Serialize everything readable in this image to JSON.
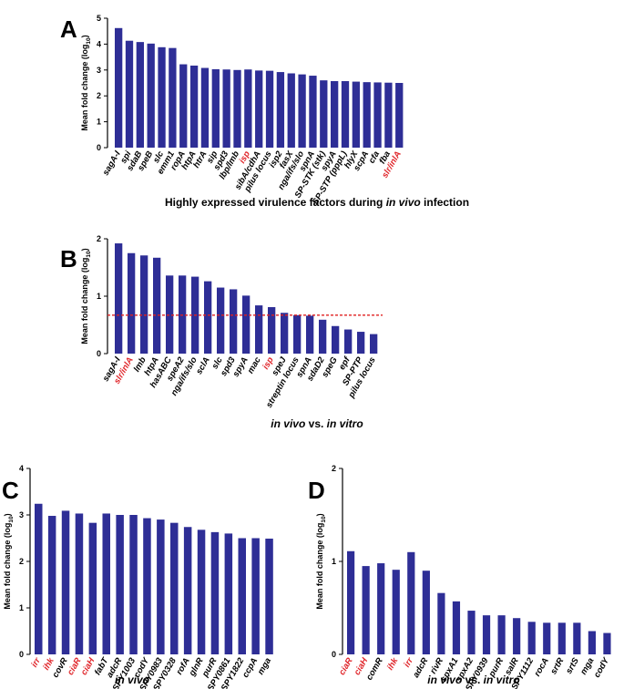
{
  "colors": {
    "bar": "#2e2e96",
    "highlight": "#e0262b",
    "normal": "#000000",
    "threshold": "#e02020"
  },
  "chart_data": [
    {
      "id": "A",
      "type": "bar",
      "panel_label": "A",
      "ylabel_main": "Mean fold change (log",
      "ylabel_sub": "10",
      "ylabel_end": ")",
      "ylim": [
        0,
        5
      ],
      "yticks": [
        0,
        1,
        2,
        3,
        4,
        5
      ],
      "categories": [
        "sagA-I",
        "spi",
        "sdaB",
        "speB",
        "slc",
        "emm1",
        "ropA",
        "htpA",
        "htrA",
        "sip",
        "spd3",
        "lbp/lmb",
        "isp",
        "sibA/cdhA",
        "pilus locus",
        "isp2",
        "fasX",
        "nga/ifs/slo",
        "spnA",
        "SP-STK (stk)",
        "spyA",
        "SP-STP (pppL)",
        "hlyX",
        "scpA",
        "cfa",
        "fba",
        "slr/inlA"
      ],
      "values": [
        4.62,
        4.13,
        4.08,
        4.02,
        3.88,
        3.85,
        3.22,
        3.17,
        3.08,
        3.03,
        3.02,
        3.0,
        3.02,
        2.98,
        2.97,
        2.92,
        2.87,
        2.83,
        2.78,
        2.6,
        2.57,
        2.57,
        2.55,
        2.53,
        2.52,
        2.51,
        2.5
      ],
      "highlighted": [
        "isp",
        "slr/inlA"
      ],
      "italic_categories": [
        "sagA-I",
        "spi",
        "sdaB",
        "speB",
        "slc",
        "emm1",
        "ropA",
        "htpA",
        "htrA",
        "sip",
        "spd3",
        "lbp/lmb",
        "isp",
        "sibA/cdhA",
        "isp2",
        "fasX",
        "nga/ifs/slo",
        "spnA",
        "spyA",
        "hlyX",
        "scpA",
        "cfa",
        "fba",
        "slr/inlA"
      ],
      "caption": [
        {
          "text": "Highly expressed virulence factors during ",
          "italic": false
        },
        {
          "text": "in vivo",
          "italic": true
        },
        {
          "text": " infection",
          "italic": false
        }
      ]
    },
    {
      "id": "B",
      "type": "bar",
      "panel_label": "B",
      "ylabel_main": "Mean fold change (log",
      "ylabel_sub": "10",
      "ylabel_end": ")",
      "ylim": [
        0,
        2
      ],
      "yticks": [
        0,
        1,
        2
      ],
      "threshold": 0.67,
      "categories": [
        "sagA-I",
        "slr/inlA",
        "lmb",
        "htpA",
        "hasABC",
        "speA2",
        "nga/ifs/slo",
        "sclA",
        "slc",
        "spd3",
        "spyA",
        "mac",
        "isp",
        "speJ",
        "strepti­n locus",
        "spnA",
        "sdaD2",
        "speG",
        "epf",
        "SP-PTP",
        "pilus locus"
      ],
      "values": [
        1.92,
        1.75,
        1.71,
        1.67,
        1.36,
        1.36,
        1.34,
        1.26,
        1.15,
        1.12,
        1.01,
        0.84,
        0.81,
        0.71,
        0.67,
        0.66,
        0.59,
        0.48,
        0.42,
        0.38,
        0.34
      ],
      "highlighted": [
        "slr/inlA",
        "isp"
      ],
      "italic_categories": [
        "sagA-I",
        "slr/inlA",
        "lmb",
        "htpA",
        "hasABC",
        "speA2",
        "nga/ifs/slo",
        "sclA",
        "slc",
        "spd3",
        "spyA",
        "mac",
        "isp",
        "speJ",
        "spnA",
        "sdaD2",
        "speG",
        "epf"
      ],
      "caption": [
        {
          "text": "in vivo",
          "italic": true
        },
        {
          "text": " vs. ",
          "italic": false
        },
        {
          "text": "in vitro",
          "italic": true
        }
      ]
    },
    {
      "id": "C",
      "type": "bar",
      "panel_label": "C",
      "ylabel_main": "Mean fold change (log",
      "ylabel_sub": "10",
      "ylabel_end": ")",
      "ylim": [
        0,
        4
      ],
      "yticks": [
        0,
        1,
        2,
        3,
        4
      ],
      "categories": [
        "irr",
        "ihk",
        "covR",
        "ciaR",
        "ciaH",
        "fabT",
        "adcR",
        "SPY1003",
        "codY",
        "SPY0983",
        "SPY0328",
        "rofA",
        "glnR",
        "purR",
        "SPY0861",
        "SPY1822",
        "ccpA",
        "mga"
      ],
      "values": [
        3.24,
        2.98,
        3.09,
        3.03,
        2.83,
        3.03,
        3.0,
        3.0,
        2.93,
        2.9,
        2.83,
        2.74,
        2.68,
        2.63,
        2.6,
        2.5,
        2.5,
        2.49
      ],
      "highlighted": [
        "irr",
        "ihk",
        "ciaR",
        "ciaH"
      ],
      "italic_categories": [
        "irr",
        "ihk",
        "covR",
        "ciaR",
        "ciaH",
        "fabT",
        "adcR",
        "codY",
        "rofA",
        "glnR",
        "purR",
        "ccpA",
        "mga"
      ],
      "caption": [
        {
          "text": "in vivo",
          "italic": true
        }
      ]
    },
    {
      "id": "D",
      "type": "bar",
      "panel_label": "D",
      "ylabel_main": "Mean fold change (log",
      "ylabel_sub": "10",
      "ylabel_end": ")",
      "ylim": [
        0,
        2
      ],
      "yticks": [
        0,
        1,
        2
      ],
      "categories": [
        "ciaR",
        "ciaH",
        "comR",
        "ihk",
        "irr",
        "adcR",
        "rivR",
        "spxA1",
        "spxA2",
        "SPY0939",
        "purR",
        "salR",
        "SPY1112",
        "rocA",
        "srtR",
        "srtS",
        "mga",
        "codY"
      ],
      "values": [
        1.11,
        0.95,
        0.98,
        0.91,
        1.1,
        0.9,
        0.66,
        0.57,
        0.47,
        0.42,
        0.42,
        0.39,
        0.35,
        0.34,
        0.34,
        0.34,
        0.25,
        0.23
      ],
      "highlighted": [
        "ciaR",
        "ciaH",
        "ihk",
        "irr"
      ],
      "italic_categories": [
        "ciaR",
        "ciaH",
        "comR",
        "ihk",
        "irr",
        "adcR",
        "rivR",
        "spxA1",
        "spxA2",
        "purR",
        "salR",
        "rocA",
        "srtR",
        "srtS",
        "mga",
        "codY"
      ],
      "caption": [
        {
          "text": "in vivo",
          "italic": true
        },
        {
          "text": " vs. ",
          "italic": false
        },
        {
          "text": "in vitro",
          "italic": true
        }
      ]
    }
  ]
}
